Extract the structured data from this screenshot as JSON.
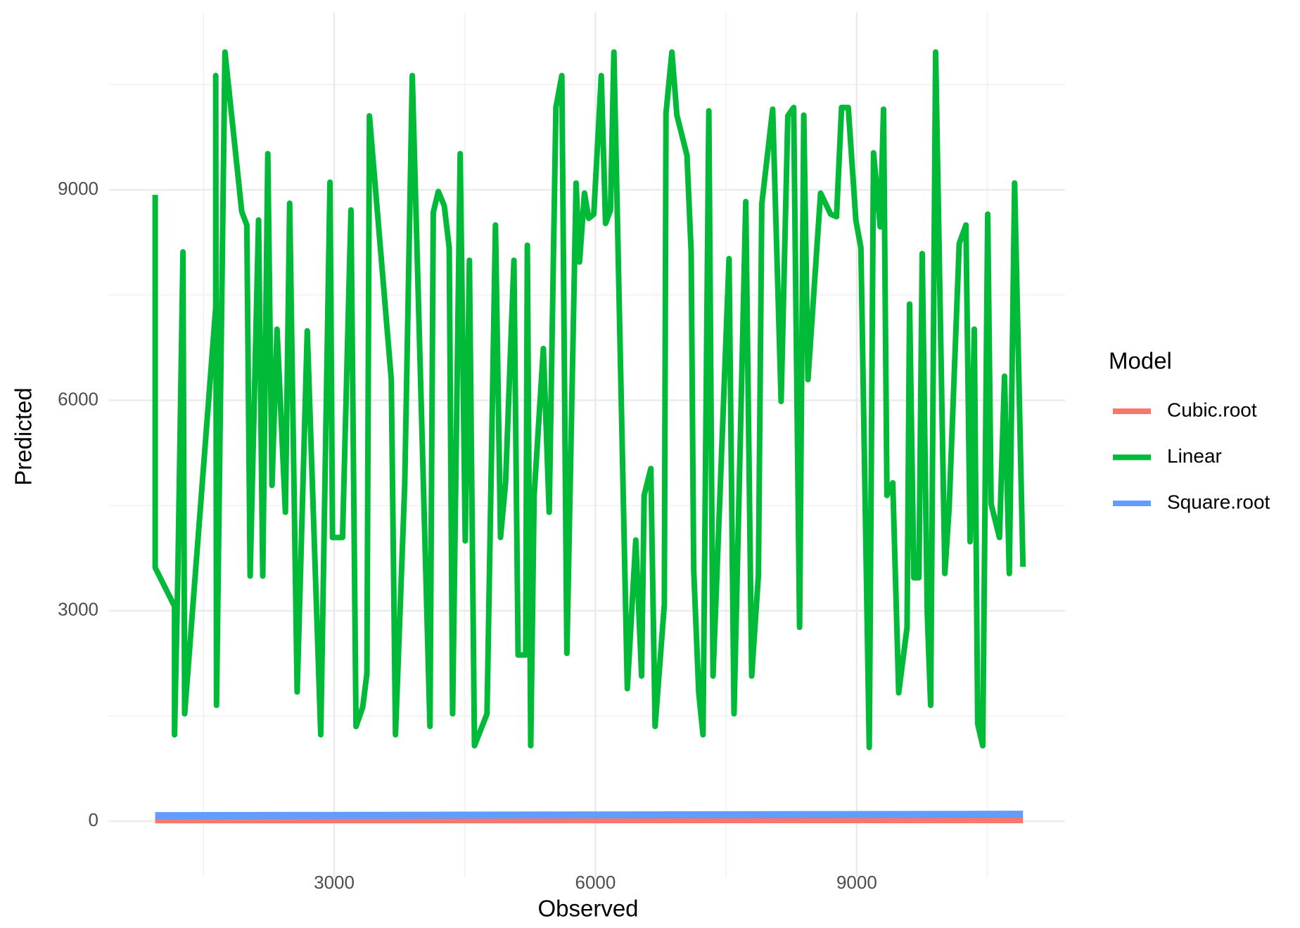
{
  "chart_data": {
    "type": "line",
    "x_label": "Observed",
    "y_label": "Predicted",
    "legend_title": "Model",
    "legend": "right",
    "grid": true,
    "xlim": [
      415,
      11392
    ],
    "ylim": [
      -800,
      11525
    ],
    "xticks": [
      3000,
      6000,
      9000
    ],
    "yticks": [
      0,
      3000,
      6000,
      9000
    ],
    "x_minor_grid": [
      1500,
      4500,
      7500,
      10500
    ],
    "y_minor_grid": [
      1500,
      4500,
      7500,
      10500
    ],
    "series": [
      {
        "name": "Cubic.root",
        "color": "#f8766d",
        "x": [
          945,
          10909
        ],
        "values": [
          20,
          22
        ]
      },
      {
        "name": "Linear",
        "color": "#00ba38",
        "x": [
          945,
          945,
          1167,
          1167,
          1206,
          1264,
          1283,
          1640,
          1640,
          1649,
          1746,
          1939,
          1997,
          2035,
          2132,
          2180,
          2238,
          2286,
          2344,
          2440,
          2489,
          2575,
          2691,
          2846,
          2952,
          2981,
          3096,
          3193,
          3251,
          3328,
          3376,
          3405,
          3656,
          3704,
          3810,
          3897,
          4100,
          4138,
          4196,
          4264,
          4321,
          4360,
          4447,
          4505,
          4553,
          4611,
          4755,
          4852,
          4910,
          4968,
          5064,
          5112,
          5199,
          5218,
          5257,
          5296,
          5402,
          5469,
          5546,
          5614,
          5672,
          5778,
          5817,
          5874,
          5923,
          5981,
          6067,
          6116,
          6173,
          6212,
          6366,
          6463,
          6530,
          6559,
          6636,
          6685,
          6791,
          6810,
          6878,
          6935,
          7051,
          7099,
          7128,
          7186,
          7235,
          7302,
          7350,
          7534,
          7591,
          7726,
          7794,
          7871,
          7910,
          8035,
          8132,
          8209,
          8276,
          8344,
          8392,
          8440,
          8585,
          8701,
          8768,
          8826,
          8903,
          8990,
          9048,
          9144,
          9193,
          9270,
          9308,
          9347,
          9414,
          9482,
          9578,
          9607,
          9656,
          9714,
          9752,
          9810,
          9849,
          9906,
          10012,
          10061,
          10177,
          10254,
          10302,
          10350,
          10389,
          10447,
          10504,
          10543,
          10639,
          10697,
          10752,
          10813,
          10909
        ],
        "values": [
          8928,
          3614,
          3064,
          1233,
          3566,
          8114,
          1532,
          7324,
          10628,
          1652,
          10963,
          8689,
          8497,
          3495,
          8569,
          3495,
          9515,
          4787,
          7013,
          4404,
          8808,
          1843,
          6989,
          1233,
          9108,
          4045,
          4045,
          8713,
          1352,
          1628,
          2106,
          10053,
          6295,
          1233,
          4787,
          10628,
          1352,
          8677,
          8976,
          8773,
          8174,
          1532,
          9515,
          3997,
          7995,
          1077,
          1532,
          8497,
          4045,
          4823,
          7995,
          2370,
          2370,
          8210,
          1077,
          4644,
          6738,
          4404,
          10173,
          10628,
          2394,
          9096,
          7971,
          8952,
          8593,
          8653,
          10628,
          8521,
          8713,
          10963,
          1891,
          4009,
          2070,
          4644,
          5027,
          1352,
          3088,
          10089,
          10963,
          10065,
          9491,
          8114,
          3590,
          1831,
          1233,
          10125,
          2070,
          8019,
          1532,
          8832,
          2070,
          3507,
          8796,
          10149,
          5984,
          10053,
          10173,
          2765,
          10065,
          6295,
          8952,
          8653,
          8617,
          10173,
          10173,
          8569,
          8174,
          1053,
          9527,
          8473,
          10149,
          4644,
          4823,
          1831,
          2765,
          7372,
          3471,
          3471,
          8090,
          2968,
          1652,
          10963,
          3531,
          4464,
          8234,
          8497,
          3985,
          7013,
          1388,
          1077,
          8653,
          4524,
          4045,
          6343,
          3531,
          9096,
          3626
        ]
      },
      {
        "name": "Square.root",
        "color": "#619cff",
        "x": [
          945,
          10909
        ],
        "values": [
          80,
          100
        ]
      }
    ]
  }
}
